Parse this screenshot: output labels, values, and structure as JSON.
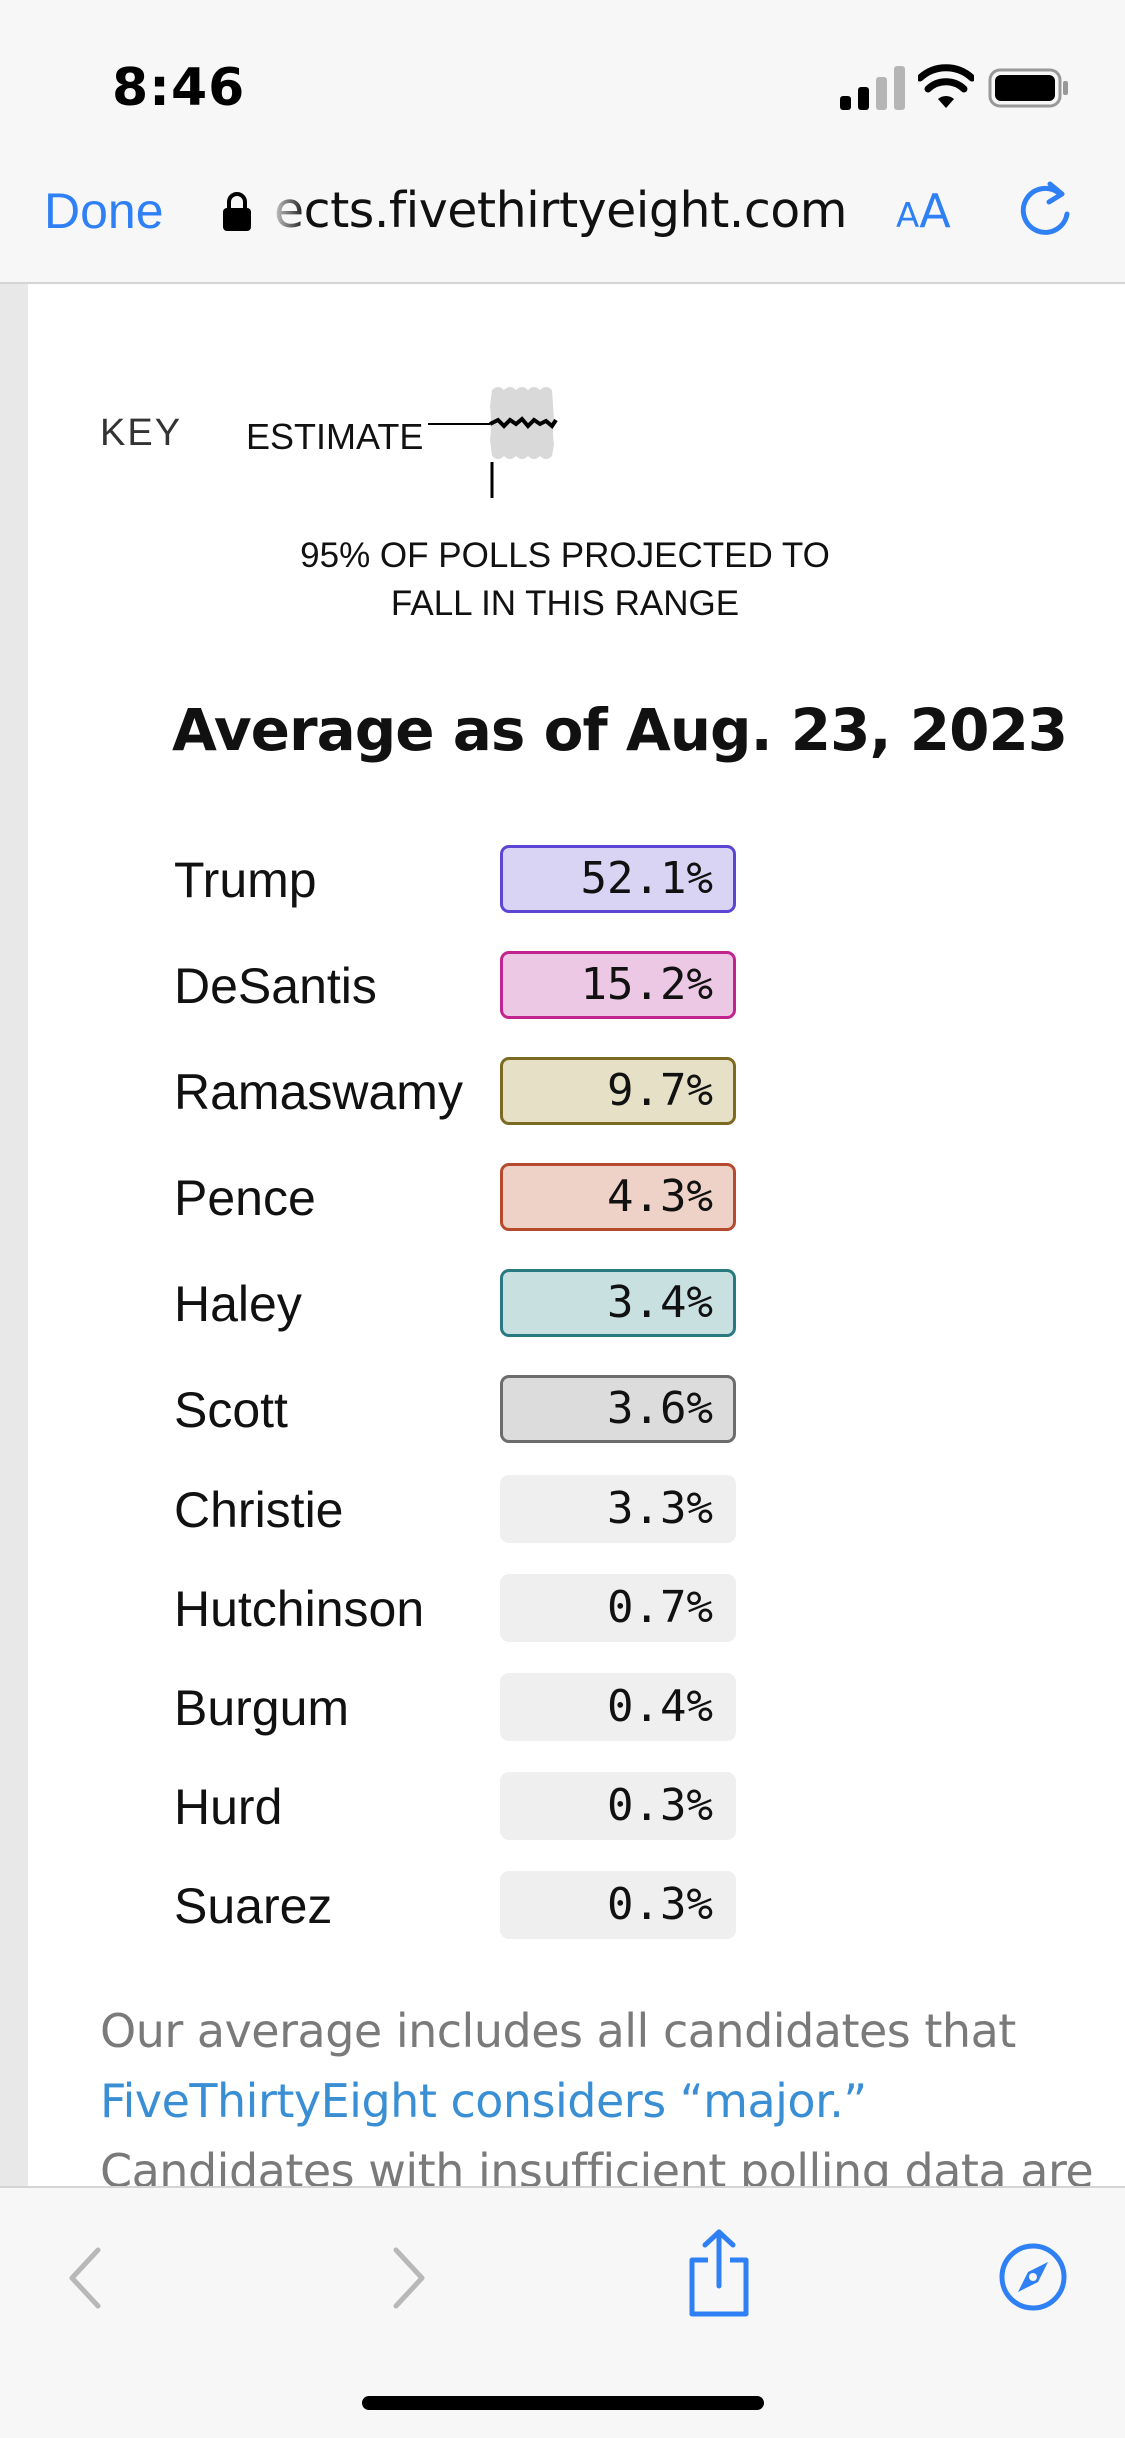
{
  "status_bar": {
    "time": "8:46",
    "signal_icon": "cellular-signal-icon",
    "wifi_icon": "wifi-icon",
    "battery_icon": "battery-icon"
  },
  "browser": {
    "done_label": "Done",
    "url": "ects.fivethirtyeight.com",
    "lock_icon": "lock-icon",
    "aa_small": "A",
    "aa_big": "A",
    "reload_icon": "reload-icon"
  },
  "key": {
    "label": "KEY",
    "estimate_label": "ESTIMATE",
    "range_caption_line1": "95% OF POLLS PROJECTED TO",
    "range_caption_line2": "FALL IN THIS RANGE"
  },
  "heading": "Average as of Aug. 23, 2023",
  "candidates": [
    {
      "name": "Trump",
      "value": "52.1%",
      "bg": "#d9d3f4",
      "border": "#5b45d4"
    },
    {
      "name": "DeSantis",
      "value": "15.2%",
      "bg": "#edc8e4",
      "border": "#c2248f"
    },
    {
      "name": "Ramaswamy",
      "value": "9.7%",
      "bg": "#e6e0c6",
      "border": "#7c6a22"
    },
    {
      "name": "Pence",
      "value": "4.3%",
      "bg": "#eed2c7",
      "border": "#b54a2e"
    },
    {
      "name": "Haley",
      "value": "3.4%",
      "bg": "#c8e0e0",
      "border": "#297a80"
    },
    {
      "name": "Scott",
      "value": "3.6%",
      "bg": "#dcdcdc",
      "border": "#6c6c6c"
    },
    {
      "name": "Christie",
      "value": "3.3%",
      "bg": "#efefef",
      "border": ""
    },
    {
      "name": "Hutchinson",
      "value": "0.7%",
      "bg": "#efefef",
      "border": ""
    },
    {
      "name": "Burgum",
      "value": "0.4%",
      "bg": "#efefef",
      "border": ""
    },
    {
      "name": "Hurd",
      "value": "0.3%",
      "bg": "#efefef",
      "border": ""
    },
    {
      "name": "Suarez",
      "value": "0.3%",
      "bg": "#efefef",
      "border": ""
    }
  ],
  "footnote": {
    "line1": "Our average includes all candidates that",
    "link": "FiveThirtyEight considers “major.”",
    "line3": "Candidates with insufficient polling data are"
  },
  "toolbar": {
    "back_icon": "back-arrow-icon",
    "forward_icon": "forward-arrow-icon",
    "share_icon": "share-icon",
    "compass_icon": "compass-icon"
  }
}
